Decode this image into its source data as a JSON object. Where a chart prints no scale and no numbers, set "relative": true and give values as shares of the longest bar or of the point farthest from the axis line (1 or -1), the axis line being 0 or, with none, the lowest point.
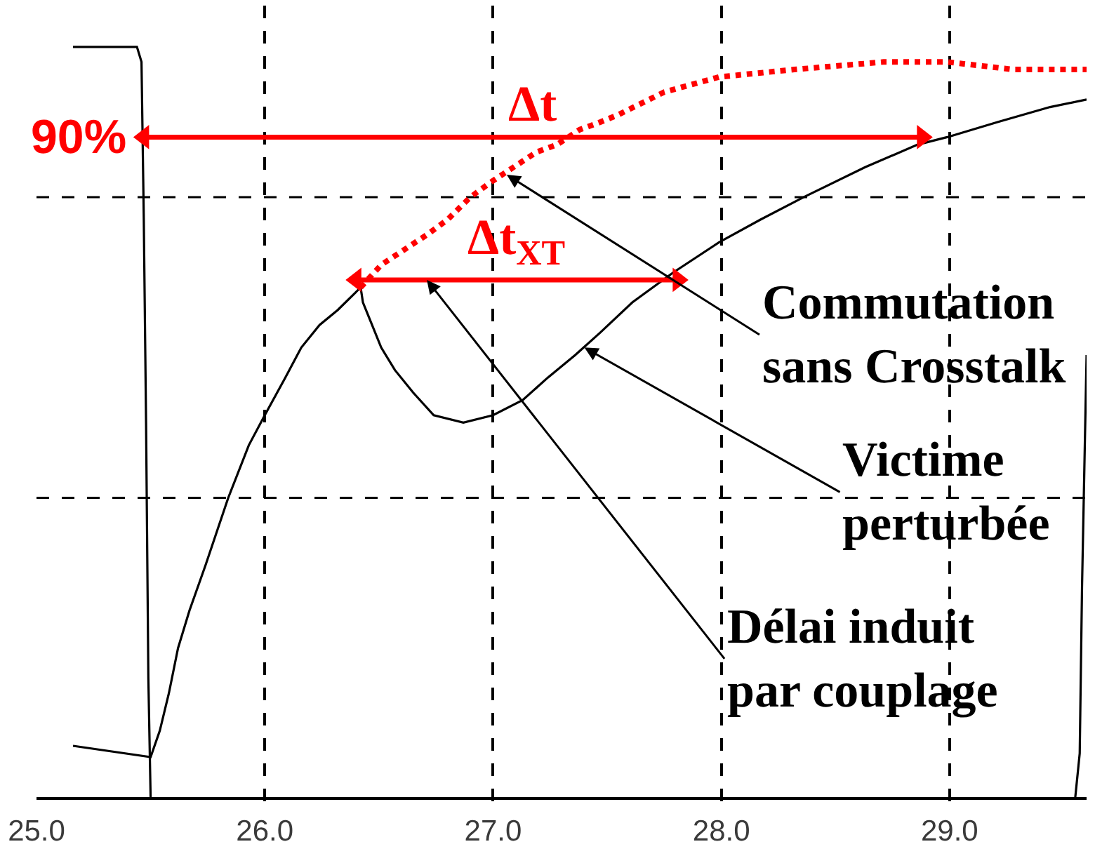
{
  "chart_data": {
    "type": "line",
    "relative": true,
    "xlim": [
      25.0,
      29.6
    ],
    "xticks": [
      {
        "value": 25,
        "label": "25.0"
      },
      {
        "value": 26,
        "label": "26.0"
      },
      {
        "value": 27,
        "label": "27.0"
      },
      {
        "value": 28,
        "label": "28.0"
      },
      {
        "value": 29,
        "label": "29.0"
      }
    ],
    "grid": "x",
    "legend": false,
    "series": [
      {
        "color": "#000000",
        "x": [
          25.16,
          25.44,
          25.46,
          25.47,
          25.48,
          25.49,
          25.5,
          29.55,
          29.57,
          29.58,
          29.6
        ],
        "values": [
          1.0,
          1.0,
          0.98,
          0.77,
          0.5,
          0.16,
          0.0,
          0.0,
          0.06,
          0.28,
          0.59
        ]
      },
      {
        "color": "#000000",
        "x": [
          25.16,
          25.5,
          25.54,
          25.58,
          25.62,
          25.67,
          25.74,
          25.84,
          25.93,
          26.0,
          26.09,
          26.16,
          26.24,
          26.32,
          26.42,
          26.43,
          26.47,
          26.51,
          26.57,
          26.65,
          26.74,
          26.87,
          27.0,
          27.13,
          27.24,
          27.36,
          27.47,
          27.61,
          27.79,
          27.99,
          28.17,
          28.36,
          28.63,
          28.86,
          28.99,
          29.21,
          29.44,
          29.6
        ],
        "values": [
          0.07,
          0.055,
          0.09,
          0.14,
          0.2,
          0.25,
          0.31,
          0.4,
          0.47,
          0.51,
          0.56,
          0.6,
          0.63,
          0.65,
          0.68,
          0.66,
          0.63,
          0.6,
          0.57,
          0.54,
          0.51,
          0.5,
          0.51,
          0.53,
          0.56,
          0.59,
          0.62,
          0.66,
          0.7,
          0.74,
          0.77,
          0.8,
          0.84,
          0.87,
          0.88,
          0.9,
          0.92,
          0.93
        ]
      },
      {
        "color": "#ff0000",
        "line_style": "dotted",
        "x": [
          26.42,
          26.51,
          26.61,
          26.71,
          26.8,
          26.9,
          26.99,
          27.09,
          27.19,
          27.28,
          27.38,
          27.47,
          27.55,
          27.75,
          27.99,
          28.32,
          28.71,
          28.99,
          29.28,
          29.6
        ],
        "values": [
          0.68,
          0.71,
          0.73,
          0.75,
          0.77,
          0.8,
          0.82,
          0.84,
          0.86,
          0.87,
          0.89,
          0.9,
          0.91,
          0.94,
          0.96,
          0.97,
          0.98,
          0.98,
          0.97,
          0.97
        ]
      },
      {
        "name": "Δt",
        "color": "#ff0000",
        "marker": "triangle",
        "x": [
          25.47,
          28.88
        ],
        "values": [
          0.88,
          0.88
        ]
      },
      {
        "name": "Δt$_{XT}$",
        "color": "#ff0000",
        "marker": "triangle",
        "x": [
          26.4,
          27.81
        ],
        "values": [
          0.69,
          0.69
        ]
      }
    ],
    "ref_lines": [
      {
        "axis": "y",
        "value": 0.4,
        "color": "#000000",
        "line_style": "dashed"
      },
      {
        "axis": "y",
        "value": 0.8,
        "color": "#000000",
        "line_style": "dashed"
      }
    ],
    "annotations": [
      {
        "text": "90%",
        "x": 25.47,
        "y": 0.88
      },
      {
        "text": "Commutation\nsans Crosstalk",
        "x": 27.06,
        "y": 0.83
      },
      {
        "text": "Victime\nperturbée",
        "x": 27.4,
        "y": 0.6
      },
      {
        "text": "Délai induit\npar couplage",
        "x": 26.71,
        "y": 0.69
      }
    ]
  }
}
